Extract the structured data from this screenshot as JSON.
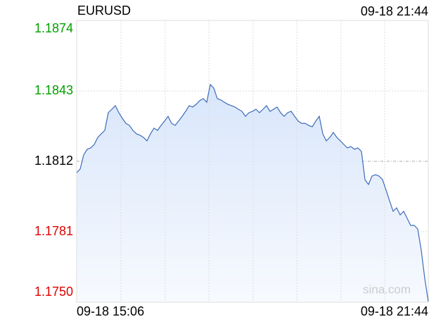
{
  "chart_data": {
    "type": "line",
    "title": "EURUSD",
    "time": "09-18 21:44",
    "watermark": "sina.com",
    "x_labels": [
      "09-18 15:06",
      "09-18 21:44"
    ],
    "reference": 1.1812,
    "color": "#3d6cb9",
    "up_color": "#00a000",
    "down_color": "#e00000",
    "grid": true,
    "ylim": [
      1.175,
      1.1874
    ],
    "yticks": [
      {
        "value": 1.175,
        "label": "1.1750"
      },
      1.1781,
      1.1812,
      1.1843,
      1.1874
    ],
    "values": [
      1.1807,
      1.18086,
      1.18148,
      1.18173,
      1.18179,
      1.18194,
      1.18225,
      1.18241,
      1.18256,
      1.18334,
      1.18349,
      1.18365,
      1.18334,
      1.18309,
      1.18287,
      1.18278,
      1.18256,
      1.18241,
      1.18235,
      1.18225,
      1.1821,
      1.18241,
      1.18266,
      1.18256,
      1.18278,
      1.18297,
      1.18318,
      1.18287,
      1.18278,
      1.18297,
      1.18318,
      1.1834,
      1.18365,
      1.18359,
      1.18371,
      1.18387,
      1.18396,
      1.1838,
      1.18458,
      1.18442,
      1.18396,
      1.1839,
      1.1838,
      1.18371,
      1.18365,
      1.18359,
      1.18349,
      1.1834,
      1.18318,
      1.18334,
      1.1834,
      1.18349,
      1.18334,
      1.18349,
      1.18365,
      1.1834,
      1.18349,
      1.18359,
      1.18334,
      1.18318,
      1.18334,
      1.1834,
      1.18318,
      1.18297,
      1.18287,
      1.18287,
      1.18278,
      1.18272,
      1.18297,
      1.18318,
      1.18241,
      1.1821,
      1.18225,
      1.18247,
      1.18225,
      1.1821,
      1.18194,
      1.18179,
      1.18185,
      1.18173,
      1.18179,
      1.18163,
      1.18039,
      1.18018,
      1.18055,
      1.18061,
      1.18055,
      1.18039,
      1.17993,
      1.17946,
      1.179,
      1.17915,
      1.17884,
      1.179,
      1.17869,
      1.17838,
      1.17838,
      1.17822,
      1.17729,
      1.17605,
      1.17503
    ]
  }
}
